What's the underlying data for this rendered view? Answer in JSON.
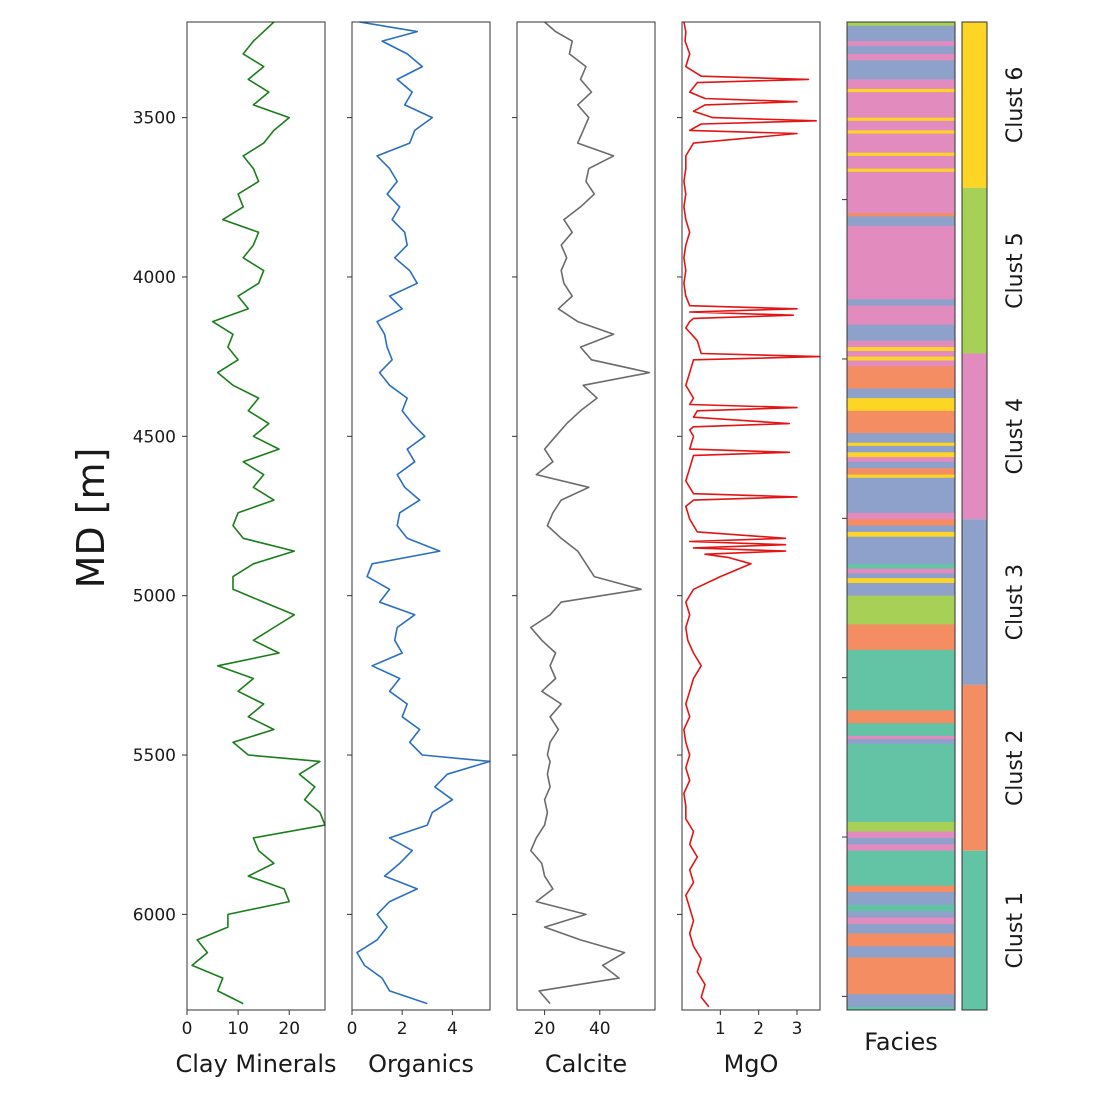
{
  "chart_data": {
    "type": "well-log",
    "ylabel": "MD [m]",
    "ylim": [
      3200,
      6300
    ],
    "y_inverted": true,
    "y_ticks": [
      3500,
      4000,
      4500,
      5000,
      5500,
      6000
    ],
    "tracks": [
      {
        "name": "Clay Minerals",
        "color": "#1c7d1c",
        "xlim": [
          0,
          27
        ],
        "x_ticks": [
          0,
          10,
          20
        ],
        "depth": [
          3200,
          3230,
          3260,
          3300,
          3340,
          3380,
          3420,
          3460,
          3500,
          3540,
          3580,
          3620,
          3660,
          3700,
          3740,
          3780,
          3820,
          3860,
          3900,
          3940,
          3980,
          4020,
          4060,
          4100,
          4140,
          4180,
          4220,
          4260,
          4300,
          4340,
          4380,
          4420,
          4460,
          4500,
          4540,
          4580,
          4620,
          4660,
          4700,
          4740,
          4780,
          4820,
          4860,
          4900,
          4940,
          4980,
          5020,
          5060,
          5100,
          5140,
          5180,
          5220,
          5260,
          5300,
          5340,
          5380,
          5420,
          5460,
          5500,
          5520,
          5560,
          5600,
          5640,
          5680,
          5720,
          5760,
          5800,
          5840,
          5880,
          5920,
          5960,
          6000,
          6040,
          6080,
          6120,
          6160,
          6200,
          6240,
          6280
        ],
        "values": [
          17,
          15,
          13,
          11,
          15,
          12,
          16,
          13,
          20,
          17,
          15,
          11,
          13,
          14,
          10,
          11,
          7,
          14,
          13,
          11,
          15,
          14,
          10,
          12,
          5,
          9,
          8,
          10,
          6,
          9,
          14,
          12,
          16,
          13,
          18,
          11,
          15,
          13,
          17,
          10,
          9,
          11,
          21,
          13,
          9,
          9,
          15,
          21,
          17,
          13,
          18,
          6,
          13,
          10,
          15,
          12,
          17,
          9,
          12,
          26,
          22,
          25,
          23,
          26,
          27,
          13,
          14,
          17,
          12,
          19,
          20,
          8,
          8,
          2,
          4,
          1,
          7,
          6,
          11
        ]
      },
      {
        "name": "Organics",
        "color": "#2a6fc0",
        "xlim": [
          0,
          5.5
        ],
        "x_ticks": [
          0,
          2,
          4
        ],
        "depth": [
          3200,
          3230,
          3260,
          3300,
          3340,
          3380,
          3420,
          3460,
          3500,
          3540,
          3580,
          3620,
          3660,
          3700,
          3740,
          3780,
          3820,
          3860,
          3900,
          3940,
          3980,
          4020,
          4060,
          4100,
          4140,
          4180,
          4220,
          4260,
          4300,
          4340,
          4380,
          4420,
          4460,
          4500,
          4540,
          4580,
          4620,
          4660,
          4700,
          4740,
          4780,
          4820,
          4860,
          4900,
          4940,
          4980,
          5020,
          5060,
          5100,
          5140,
          5180,
          5220,
          5260,
          5300,
          5340,
          5380,
          5420,
          5460,
          5500,
          5520,
          5560,
          5600,
          5640,
          5680,
          5720,
          5760,
          5800,
          5840,
          5880,
          5920,
          5960,
          6000,
          6040,
          6080,
          6120,
          6160,
          6200,
          6240,
          6280
        ],
        "values": [
          0.3,
          2.6,
          1.2,
          2.2,
          2.8,
          1.8,
          2.4,
          2.1,
          3.2,
          2.5,
          2.3,
          1.0,
          1.5,
          1.8,
          1.4,
          1.9,
          1.6,
          2.1,
          2.2,
          1.7,
          2.3,
          2.6,
          1.5,
          2.0,
          1.0,
          1.3,
          1.4,
          1.6,
          1.1,
          1.5,
          2.2,
          2.0,
          2.4,
          2.9,
          2.2,
          2.5,
          1.8,
          2.1,
          2.7,
          1.9,
          1.8,
          2.2,
          3.5,
          0.8,
          0.6,
          1.5,
          1.1,
          2.5,
          1.8,
          1.7,
          2.0,
          0.8,
          1.9,
          1.5,
          2.2,
          2.0,
          2.7,
          2.3,
          2.8,
          5.5,
          3.8,
          3.3,
          4.0,
          3.2,
          3.0,
          1.5,
          2.4,
          1.9,
          1.3,
          2.6,
          1.5,
          1.0,
          1.4,
          1.0,
          0.2,
          0.5,
          1.2,
          1.5,
          3.0
        ]
      },
      {
        "name": "Calcite",
        "color": "#6b6b6b",
        "xlim": [
          10,
          60
        ],
        "x_ticks": [
          20,
          40
        ],
        "depth": [
          3200,
          3230,
          3260,
          3300,
          3340,
          3380,
          3420,
          3460,
          3500,
          3540,
          3580,
          3620,
          3660,
          3700,
          3740,
          3780,
          3820,
          3860,
          3900,
          3940,
          3980,
          4020,
          4060,
          4100,
          4140,
          4180,
          4220,
          4260,
          4300,
          4340,
          4380,
          4420,
          4460,
          4500,
          4540,
          4580,
          4620,
          4660,
          4700,
          4740,
          4780,
          4820,
          4860,
          4900,
          4940,
          4980,
          5020,
          5060,
          5100,
          5140,
          5180,
          5220,
          5260,
          5300,
          5340,
          5380,
          5420,
          5460,
          5500,
          5520,
          5560,
          5600,
          5640,
          5680,
          5720,
          5760,
          5800,
          5840,
          5880,
          5920,
          5960,
          6000,
          6040,
          6080,
          6120,
          6160,
          6200,
          6240,
          6280
        ],
        "values": [
          20,
          24,
          30,
          29,
          35,
          33,
          37,
          32,
          36,
          34,
          32,
          45,
          36,
          35,
          38,
          33,
          27,
          30,
          26,
          28,
          26,
          27,
          30,
          25,
          32,
          45,
          33,
          37,
          58,
          34,
          39,
          33,
          28,
          24,
          20,
          23,
          17,
          36,
          26,
          23,
          21,
          26,
          32,
          35,
          38,
          55,
          26,
          22,
          15,
          19,
          24,
          22,
          24,
          19,
          26,
          22,
          25,
          22,
          21,
          22,
          21,
          22,
          20,
          21,
          20,
          17,
          15,
          19,
          20,
          23,
          17,
          35,
          20,
          33,
          49,
          41,
          47,
          18,
          22
        ]
      },
      {
        "name": "MgO",
        "color": "#e31414",
        "xlim": [
          0,
          3.6
        ],
        "x_ticks": [
          1,
          2,
          3
        ],
        "depth": [
          3200,
          3230,
          3260,
          3300,
          3340,
          3370,
          3380,
          3390,
          3420,
          3440,
          3450,
          3460,
          3480,
          3500,
          3510,
          3520,
          3540,
          3550,
          3580,
          3620,
          3660,
          3700,
          3740,
          3780,
          3820,
          3860,
          3900,
          3940,
          3980,
          4020,
          4060,
          4090,
          4100,
          4110,
          4120,
          4130,
          4140,
          4160,
          4200,
          4240,
          4250,
          4260,
          4300,
          4340,
          4380,
          4400,
          4410,
          4420,
          4440,
          4460,
          4470,
          4480,
          4500,
          4540,
          4550,
          4560,
          4600,
          4640,
          4680,
          4690,
          4700,
          4720,
          4760,
          4800,
          4820,
          4830,
          4840,
          4850,
          4860,
          4870,
          4880,
          4900,
          4940,
          4980,
          5020,
          5060,
          5100,
          5140,
          5180,
          5220,
          5260,
          5300,
          5340,
          5380,
          5420,
          5460,
          5500,
          5540,
          5580,
          5620,
          5660,
          5700,
          5740,
          5780,
          5820,
          5860,
          5900,
          5940,
          5980,
          6020,
          6060,
          6100,
          6140,
          6180,
          6220,
          6260,
          6290
        ],
        "values": [
          0.05,
          0.1,
          0.08,
          0.2,
          0.1,
          0.5,
          3.3,
          0.4,
          0.2,
          0.6,
          3.0,
          0.6,
          0.3,
          0.8,
          3.5,
          0.5,
          0.2,
          3.0,
          0.3,
          0.1,
          0.1,
          0.05,
          0.1,
          0.05,
          0.1,
          0.2,
          0.1,
          0.05,
          0.1,
          0.05,
          0.1,
          0.2,
          3.0,
          0.2,
          2.9,
          0.3,
          0.2,
          0.1,
          0.4,
          0.5,
          3.6,
          0.3,
          0.2,
          0.1,
          0.3,
          0.2,
          3.0,
          0.4,
          0.3,
          2.8,
          0.3,
          0.2,
          0.3,
          0.2,
          2.8,
          0.3,
          0.2,
          0.1,
          0.3,
          3.0,
          0.3,
          0.1,
          0.2,
          0.4,
          2.7,
          0.2,
          2.7,
          0.3,
          2.7,
          0.6,
          1.2,
          1.8,
          1.0,
          0.3,
          0.1,
          0.2,
          0.1,
          0.15,
          0.3,
          0.5,
          0.3,
          0.2,
          0.1,
          0.2,
          0.05,
          0.1,
          0.2,
          0.1,
          0.2,
          0.05,
          0.1,
          0.1,
          0.3,
          0.2,
          0.4,
          0.2,
          0.3,
          0.1,
          0.2,
          0.3,
          0.2,
          0.3,
          0.5,
          0.4,
          0.6,
          0.5,
          0.7
        ]
      }
    ],
    "facies": {
      "xlabel": "Facies",
      "colors": {
        "teal": "#62c3a5",
        "orange": "#f58d63",
        "blue": "#8ea1cb",
        "pink": "#e28bbf",
        "green": "#a6d056",
        "yellow": "#fdd525"
      },
      "intervals": [
        [
          3200,
          3212,
          "green"
        ],
        [
          3212,
          3260,
          "blue"
        ],
        [
          3260,
          3275,
          "pink"
        ],
        [
          3275,
          3300,
          "blue"
        ],
        [
          3300,
          3320,
          "pink"
        ],
        [
          3320,
          3380,
          "blue"
        ],
        [
          3380,
          3410,
          "pink"
        ],
        [
          3410,
          3420,
          "yellow"
        ],
        [
          3420,
          3500,
          "pink"
        ],
        [
          3500,
          3510,
          "yellow"
        ],
        [
          3510,
          3540,
          "pink"
        ],
        [
          3540,
          3550,
          "yellow"
        ],
        [
          3550,
          3610,
          "pink"
        ],
        [
          3610,
          3620,
          "yellow"
        ],
        [
          3620,
          3660,
          "pink"
        ],
        [
          3660,
          3670,
          "yellow"
        ],
        [
          3670,
          3800,
          "pink"
        ],
        [
          3800,
          3810,
          "orange"
        ],
        [
          3810,
          3840,
          "blue"
        ],
        [
          3840,
          4070,
          "pink"
        ],
        [
          4070,
          4090,
          "blue"
        ],
        [
          4090,
          4150,
          "pink"
        ],
        [
          4150,
          4200,
          "blue"
        ],
        [
          4200,
          4220,
          "pink"
        ],
        [
          4220,
          4232,
          "yellow"
        ],
        [
          4232,
          4250,
          "pink"
        ],
        [
          4250,
          4262,
          "yellow"
        ],
        [
          4262,
          4280,
          "pink"
        ],
        [
          4280,
          4350,
          "orange"
        ],
        [
          4350,
          4380,
          "blue"
        ],
        [
          4380,
          4420,
          "yellow"
        ],
        [
          4420,
          4490,
          "orange"
        ],
        [
          4490,
          4520,
          "blue"
        ],
        [
          4520,
          4530,
          "yellow"
        ],
        [
          4530,
          4550,
          "blue"
        ],
        [
          4550,
          4565,
          "yellow"
        ],
        [
          4565,
          4580,
          "pink"
        ],
        [
          4580,
          4600,
          "blue"
        ],
        [
          4600,
          4620,
          "orange"
        ],
        [
          4620,
          4630,
          "yellow"
        ],
        [
          4630,
          4650,
          "blue"
        ],
        [
          4650,
          4740,
          "blue"
        ],
        [
          4740,
          4760,
          "pink"
        ],
        [
          4760,
          4780,
          "orange"
        ],
        [
          4780,
          4800,
          "blue"
        ],
        [
          4800,
          4815,
          "yellow"
        ],
        [
          4815,
          4830,
          "blue"
        ],
        [
          4830,
          4900,
          "blue"
        ],
        [
          4900,
          4915,
          "teal"
        ],
        [
          4915,
          4930,
          "pink"
        ],
        [
          4930,
          4945,
          "blue"
        ],
        [
          4945,
          4960,
          "yellow"
        ],
        [
          4960,
          5000,
          "blue"
        ],
        [
          5000,
          5090,
          "green"
        ],
        [
          5090,
          5170,
          "orange"
        ],
        [
          5170,
          5360,
          "teal"
        ],
        [
          5360,
          5400,
          "orange"
        ],
        [
          5400,
          5440,
          "teal"
        ],
        [
          5440,
          5450,
          "pink"
        ],
        [
          5450,
          5465,
          "blue"
        ],
        [
          5465,
          5710,
          "teal"
        ],
        [
          5710,
          5740,
          "green"
        ],
        [
          5740,
          5760,
          "pink"
        ],
        [
          5760,
          5780,
          "blue"
        ],
        [
          5780,
          5800,
          "pink"
        ],
        [
          5800,
          5910,
          "teal"
        ],
        [
          5910,
          5930,
          "orange"
        ],
        [
          5930,
          5970,
          "blue"
        ],
        [
          5970,
          5990,
          "teal"
        ],
        [
          5990,
          6010,
          "blue"
        ],
        [
          6010,
          6030,
          "pink"
        ],
        [
          6030,
          6060,
          "blue"
        ],
        [
          6060,
          6100,
          "orange"
        ],
        [
          6100,
          6135,
          "blue"
        ],
        [
          6135,
          6250,
          "orange"
        ],
        [
          6250,
          6290,
          "blue"
        ],
        [
          6290,
          6300,
          "teal"
        ]
      ]
    },
    "clusters": [
      {
        "label": "Clust 6",
        "color": "#fdd525",
        "from": 3200,
        "to": 3720
      },
      {
        "label": "Clust 5",
        "color": "#a6d056",
        "from": 3720,
        "to": 4240
      },
      {
        "label": "Clust 4",
        "color": "#e28bbf",
        "from": 4240,
        "to": 4760
      },
      {
        "label": "Clust 3",
        "color": "#8ea1cb",
        "from": 4760,
        "to": 5280
      },
      {
        "label": "Clust 2",
        "color": "#f58d63",
        "from": 5280,
        "to": 5800
      },
      {
        "label": "Clust 1",
        "color": "#62c3a5",
        "from": 5800,
        "to": 6300
      }
    ]
  }
}
